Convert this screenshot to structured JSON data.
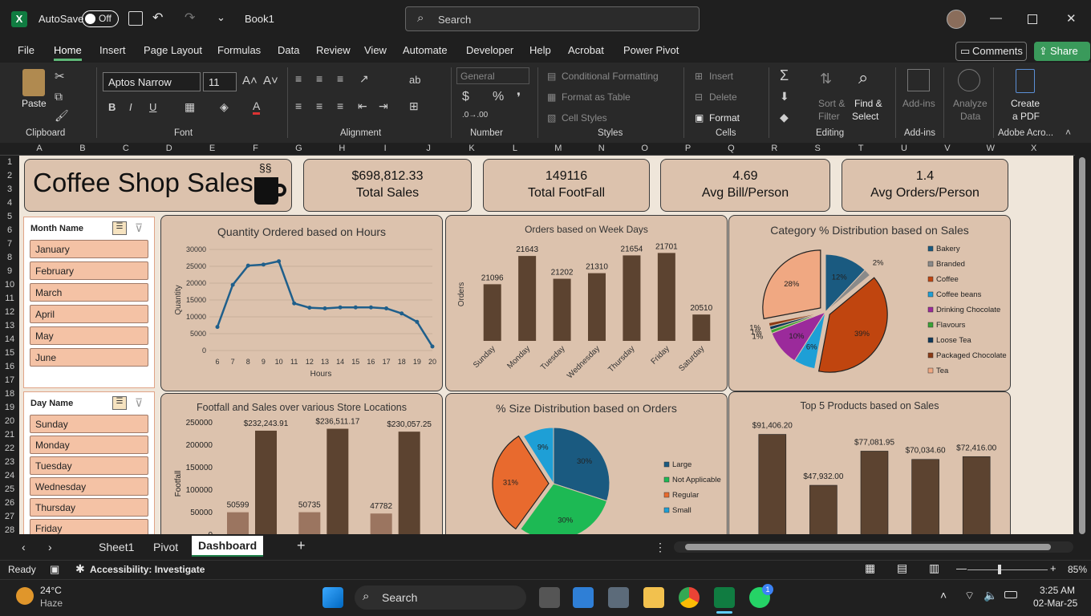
{
  "titlebar": {
    "autosave_label": "AutoSave",
    "autosave_state": "Off",
    "book_name": "Book1",
    "search_placeholder": "Search"
  },
  "menu": [
    "File",
    "Home",
    "Insert",
    "Page Layout",
    "Formulas",
    "Data",
    "Review",
    "View",
    "Automate",
    "Developer",
    "Help",
    "Acrobat",
    "Power Pivot"
  ],
  "menu_active": "Home",
  "comments_label": "Comments",
  "share_label": "Share",
  "ribbon": {
    "paste": "Paste",
    "font_name": "Aptos Narrow",
    "font_size": "11",
    "number_format": "General",
    "cond_format": "Conditional Formatting",
    "format_table": "Format as Table",
    "cell_styles": "Cell Styles",
    "insert": "Insert",
    "delete": "Delete",
    "format": "Format",
    "sort_filter": "Sort &",
    "sort_filter2": "Filter",
    "find_select": "Find &",
    "find_select2": "Select",
    "addins": "Add-ins",
    "analyze": "Analyze",
    "analyze2": "Data",
    "create_pdf": "Create",
    "create_pdf2": "a PDF",
    "groups": {
      "clipboard": "Clipboard",
      "font": "Font",
      "alignment": "Alignment",
      "number": "Number",
      "styles": "Styles",
      "cells": "Cells",
      "editing": "Editing",
      "addins": "Add-ins",
      "adobe": "Adobe Acro..."
    }
  },
  "columns": [
    "A",
    "B",
    "C",
    "D",
    "E",
    "F",
    "G",
    "H",
    "I",
    "J",
    "K",
    "L",
    "M",
    "N",
    "O",
    "P",
    "Q",
    "R",
    "S",
    "T",
    "U",
    "V",
    "W",
    "X"
  ],
  "rows": [
    "1",
    "2",
    "3",
    "4",
    "5",
    "6",
    "7",
    "8",
    "9",
    "10",
    "11",
    "12",
    "13",
    "14",
    "15",
    "16",
    "17",
    "18",
    "19",
    "20",
    "21",
    "22",
    "23",
    "24",
    "25",
    "26",
    "27",
    "28"
  ],
  "dashboard": {
    "title": "Coffee Shop Sales",
    "kpis": [
      {
        "value": "$698,812.33",
        "label": "Total Sales"
      },
      {
        "value": "149116",
        "label": "Total FootFall"
      },
      {
        "value": "4.69",
        "label": "Avg Bill/Person"
      },
      {
        "value": "1.4",
        "label": "Avg Orders/Person"
      }
    ],
    "month_slicer": {
      "header": "Month Name",
      "items": [
        "January",
        "February",
        "March",
        "April",
        "May",
        "June"
      ]
    },
    "day_slicer": {
      "header": "Day Name",
      "items": [
        "Sunday",
        "Monday",
        "Tuesday",
        "Wednesday",
        "Thursday",
        "Friday"
      ]
    }
  },
  "chart_data": [
    {
      "type": "line",
      "title": "Quantity Ordered based on Hours",
      "xlabel": "Hours",
      "ylabel": "Quantity",
      "x": [
        "6",
        "7",
        "8",
        "9",
        "10",
        "11",
        "12",
        "13",
        "14",
        "15",
        "16",
        "17",
        "18",
        "19",
        "20"
      ],
      "values": [
        7000,
        19500,
        25200,
        25500,
        26500,
        14000,
        12700,
        12500,
        12800,
        12800,
        12800,
        12500,
        11000,
        8500,
        1200
      ],
      "yticks": [
        "30000",
        "25000",
        "20000",
        "15000",
        "10000",
        "5000",
        "0"
      ],
      "ylim": [
        0,
        30000
      ],
      "color": "#1f5f8b"
    },
    {
      "type": "bar",
      "title": "Orders based on Week Days",
      "ylabel": "Orders",
      "categories": [
        "Sunday",
        "Monday",
        "Tuesday",
        "Wednesday",
        "Thursday",
        "Friday",
        "Saturday"
      ],
      "values": [
        21096,
        21643,
        21202,
        21310,
        21654,
        21701,
        20510
      ],
      "labels": [
        "21096",
        "21643",
        "21202",
        "21310",
        "21654",
        "21701",
        "20510"
      ],
      "ylim": [
        20000,
        21800
      ],
      "color": "#5c4330"
    },
    {
      "type": "pie",
      "title": "Category % Distribution based on Sales",
      "legend": [
        "Bakery",
        "Branded",
        "Coffee",
        "Coffee beans",
        "Drinking Chocolate",
        "Flavours",
        "Loose Tea",
        "Packaged Chocolate",
        "Tea"
      ],
      "values": [
        12,
        2,
        39,
        6,
        10,
        1,
        1,
        1,
        28
      ],
      "labels": [
        "12%",
        "2%",
        "39%",
        "6%",
        "10%",
        "1%",
        "1%",
        "1%",
        "28%"
      ],
      "colors": [
        "#1a5a80",
        "#8a8a8a",
        "#c0450f",
        "#1e9fd6",
        "#9b2a9b",
        "#3aa335",
        "#10395a",
        "#8b3a14",
        "#f0a882"
      ]
    },
    {
      "type": "bar",
      "title": "Footfall and Sales over various Store Locations",
      "ylabel": "Footfall",
      "yticks": [
        "250000",
        "200000",
        "150000",
        "100000",
        "50000",
        "0"
      ],
      "ylim": [
        0,
        250000
      ],
      "series": [
        {
          "values": [
            50599,
            50735,
            47782
          ],
          "labels": [
            "50599",
            "50735",
            "47782"
          ],
          "color": "#9b7560"
        },
        {
          "values": [
            232243.91,
            236511.17,
            230057.25
          ],
          "labels": [
            "$232,243.91",
            "$236,511.17",
            "$230,057.25"
          ],
          "color": "#5c4330"
        }
      ]
    },
    {
      "type": "pie",
      "title": "% Size Distribution based on Orders",
      "legend": [
        "Large",
        "Not Applicable",
        "Regular",
        "Small"
      ],
      "values": [
        30,
        30,
        31,
        9
      ],
      "labels": [
        "30%",
        "30%",
        "31%",
        "9%"
      ],
      "colors": [
        "#1a5a80",
        "#1db954",
        "#e86a2e",
        "#1e9fd6"
      ]
    },
    {
      "type": "bar",
      "title": "Top 5 Products based on Sales",
      "values": [
        91406.2,
        47932.0,
        77081.95,
        70034.6,
        72416.0
      ],
      "labels": [
        "$91,406.20",
        "$47,932.00",
        "$77,081.95",
        "$70,034.60",
        "$72,416.00"
      ],
      "ylim": [
        0,
        100000
      ],
      "color": "#5c4330"
    }
  ],
  "sheets": [
    "Sheet1",
    "Pivot",
    "Dashboard"
  ],
  "active_sheet": "Dashboard",
  "status": {
    "ready": "Ready",
    "accessibility": "Accessibility: Investigate",
    "zoom": "85%"
  },
  "taskbar": {
    "temp": "24°C",
    "weather": "Haze",
    "search": "Search",
    "time": "3:25 AM",
    "date": "02-Mar-25",
    "whatsapp_badge": "1"
  }
}
